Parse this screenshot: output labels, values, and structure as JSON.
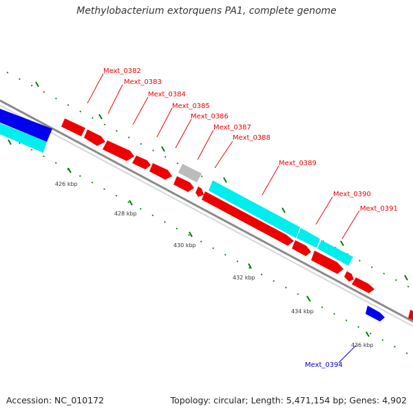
{
  "title": "Methylobacterium extorquens PA1, complete genome",
  "footer": {
    "accession": "Accession: NC_010172",
    "summary": "Topology: circular; Length: 5,471,154 bp; Genes: 4,902"
  },
  "colors": {
    "cds_forward": "#ff0000",
    "cds_reverse": "#00ffff",
    "blue_feature": "#0000ff",
    "grey_feature": "#bbbbbb",
    "backbone": "#888888",
    "tick_green": "#008800",
    "label_red": "#ee0000",
    "label_blue": "#0000cc"
  },
  "tick_labels": [
    "426 kbp",
    "428 kbp",
    "430 kbp",
    "432 kbp",
    "434 kbp",
    "436 kbp"
  ],
  "gene_labels": {
    "mext_0382": "Mext_0382",
    "mext_0383": "Mext_0383",
    "mext_0384": "Mext_0384",
    "mext_0385": "Mext_0385",
    "mext_0386": "Mext_0386",
    "mext_0387": "Mext_0387",
    "mext_0388": "Mext_0388",
    "mext_0389": "Mext_0389",
    "mext_0390": "Mext_0390",
    "mext_0391": "Mext_0391",
    "mext_0394": "Mext_0394"
  }
}
